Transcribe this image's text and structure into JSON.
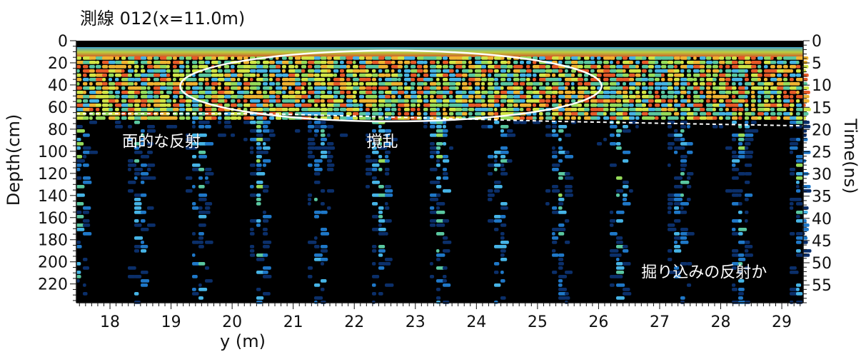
{
  "chart_data": {
    "type": "heatmap",
    "title": "測線 012(x=11.0m)",
    "xlabel": "y (m)",
    "ylabel_left": "Depth(cm)",
    "ylabel_right": "Time(ns)",
    "x_range": [
      17.45,
      29.35
    ],
    "x_ticks": [
      18,
      19,
      20,
      21,
      22,
      23,
      24,
      25,
      26,
      27,
      28,
      29
    ],
    "depth_range_cm": [
      0,
      237
    ],
    "depth_ticks": [
      0,
      20,
      40,
      60,
      80,
      100,
      120,
      140,
      160,
      180,
      200,
      220
    ],
    "time_range_ns": [
      0,
      59
    ],
    "time_ticks": [
      0,
      5,
      10,
      15,
      20,
      25,
      30,
      35,
      40,
      45,
      50,
      55
    ],
    "annotations": [
      {
        "text": "面的な反射",
        "y_m": 18.2,
        "depth_cm": 96,
        "color": "#ffffff"
      },
      {
        "text": "撹乱",
        "y_m": 22.2,
        "depth_cm": 96,
        "color": "#ffffff"
      },
      {
        "text": "掘り込みの反射か",
        "y_m": 26.7,
        "depth_cm": 214,
        "color": "#ffffff"
      }
    ],
    "ellipse": {
      "center_y_m": 22.6,
      "center_depth_cm": 41,
      "half_width_m": 3.45,
      "half_depth_cm": 32,
      "color": "#ffffff"
    },
    "dashed_line": {
      "points": [
        [
          17.45,
          66
        ],
        [
          20.5,
          66
        ],
        [
          25.3,
          73
        ],
        [
          29.35,
          77
        ]
      ],
      "color": "#ffffff"
    },
    "colormap": [
      "#000000",
      "#0b2f6a",
      "#1f78c8",
      "#46b4e6",
      "#5ac8a0",
      "#96dc5a",
      "#d2e646",
      "#f0b432",
      "#e65a28"
    ]
  }
}
